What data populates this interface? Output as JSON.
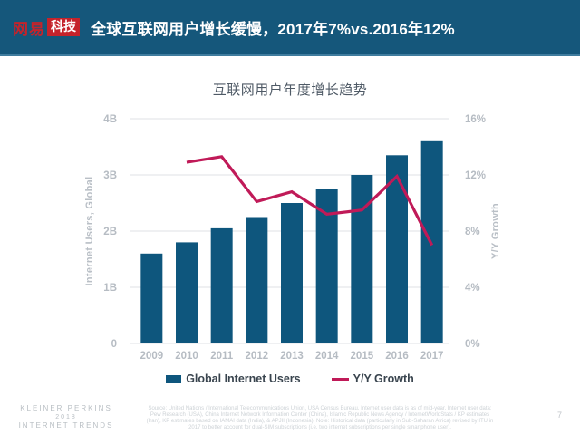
{
  "header": {
    "logo_brand": "网易",
    "logo_badge": "科技",
    "title": "全球互联网用户增长缓慢，2017年7%vs.2016年12%"
  },
  "chart_data": {
    "type": "bar",
    "subtype": "bar+line combo",
    "title": "互联网用户年度增长趋势",
    "categories": [
      "2009",
      "2010",
      "2011",
      "2012",
      "2013",
      "2014",
      "2015",
      "2016",
      "2017"
    ],
    "series": [
      {
        "name": "Global Internet Users",
        "type": "bar",
        "axis": "left",
        "unit": "B",
        "values": [
          1.6,
          1.8,
          2.05,
          2.25,
          2.5,
          2.75,
          3.0,
          3.35,
          3.6
        ]
      },
      {
        "name": "Y/Y Growth",
        "type": "line",
        "axis": "right",
        "unit": "%",
        "x": [
          "2010",
          "2011",
          "2012",
          "2013",
          "2014",
          "2015",
          "2016",
          "2017"
        ],
        "values": [
          12.9,
          13.3,
          10.1,
          10.8,
          9.2,
          9.5,
          11.9,
          7.0
        ]
      }
    ],
    "left_axis": {
      "label": "Internet Users, Global",
      "ticks": [
        "0",
        "1B",
        "2B",
        "3B",
        "4B"
      ],
      "range": [
        0,
        4
      ]
    },
    "right_axis": {
      "label": "Y/Y Growth",
      "ticks": [
        "0%",
        "4%",
        "8%",
        "12%",
        "16%"
      ],
      "range": [
        0,
        16
      ]
    },
    "grid": true,
    "legend_position": "bottom"
  },
  "footer": {
    "brand_lines": [
      "KLEINER PERKINS",
      "2018",
      "INTERNET TRENDS"
    ],
    "source": "Source: United Nations / International Telecommunications Union, USA Census Bureau. Internet user data is as of mid-year. Internet user data: Pew Research (USA), China Internet Network Information Center (China), Islamic Republic News Agency / InternetWorldStats / KP estimates (Iran), KP estimates based on IAMAI data (India), & APJII (Indonesia). Note: Historical data (particularly in Sub-Saharan Africa) revised by ITU in 2017 to better account for dual-SIM subscriptions (i.e. two internet subscriptions per single smartphone user).",
    "page_number": "7"
  },
  "colors": {
    "header_bg": "#15577B",
    "logo_red": "#C5232B",
    "bar": "#0E567D",
    "line": "#C01A58",
    "grid": "#E5E8EA",
    "tick_text": "#B6BCC3",
    "legend_text": "#39444E",
    "title_text": "#4F5A66"
  }
}
